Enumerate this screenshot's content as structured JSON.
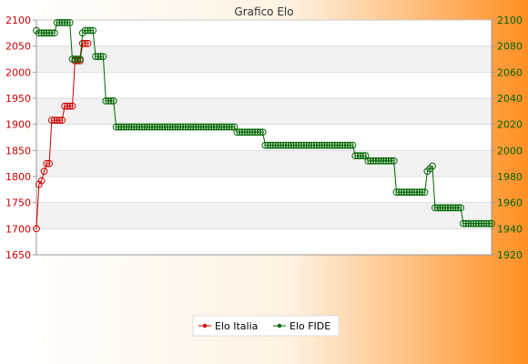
{
  "chart_data": {
    "type": "line",
    "title": "Grafico Elo",
    "y_left": {
      "min": 1650,
      "max": 2100,
      "step": 50,
      "color": "#cc0000"
    },
    "y_right": {
      "min": 1920,
      "max": 2100,
      "step": 20,
      "color": "#006600"
    },
    "grid": "horizontal",
    "legend_position": "bottom-center",
    "series": [
      {
        "name": "Elo Italia",
        "axis": "left",
        "color": "#cc0000",
        "values": [
          1700,
          1785,
          1792,
          1810,
          1825,
          1825,
          1908,
          1908,
          1908,
          1908,
          1908,
          1935,
          1935,
          1935,
          1935,
          2022,
          2022,
          2022,
          2055,
          2055,
          2055
        ]
      },
      {
        "name": "Elo FIDE",
        "axis": "right",
        "color": "#006600",
        "values": [
          2092,
          2090,
          2090,
          2090,
          2090,
          2090,
          2090,
          2090,
          2098,
          2098,
          2098,
          2098,
          2098,
          2098,
          2070,
          2070,
          2070,
          2070,
          2090,
          2092,
          2092,
          2092,
          2092,
          2072,
          2072,
          2072,
          2072,
          2038,
          2038,
          2038,
          2038,
          2018,
          2018,
          2018,
          2018,
          2018,
          2018,
          2018,
          2018,
          2018,
          2018,
          2018,
          2018,
          2018,
          2018,
          2018,
          2018,
          2018,
          2018,
          2018,
          2018,
          2018,
          2018,
          2018,
          2018,
          2018,
          2018,
          2018,
          2018,
          2018,
          2018,
          2018,
          2018,
          2018,
          2018,
          2018,
          2018,
          2018,
          2018,
          2018,
          2018,
          2018,
          2018,
          2018,
          2018,
          2018,
          2018,
          2018,
          2014,
          2014,
          2014,
          2014,
          2014,
          2014,
          2014,
          2014,
          2014,
          2014,
          2014,
          2004,
          2004,
          2004,
          2004,
          2004,
          2004,
          2004,
          2004,
          2004,
          2004,
          2004,
          2004,
          2004,
          2004,
          2004,
          2004,
          2004,
          2004,
          2004,
          2004,
          2004,
          2004,
          2004,
          2004,
          2004,
          2004,
          2004,
          2004,
          2004,
          2004,
          2004,
          2004,
          2004,
          2004,
          2004,
          1996,
          1996,
          1996,
          1996,
          1996,
          1992,
          1992,
          1992,
          1992,
          1992,
          1992,
          1992,
          1992,
          1992,
          1992,
          1992,
          1968,
          1968,
          1968,
          1968,
          1968,
          1968,
          1968,
          1968,
          1968,
          1968,
          1968,
          1968,
          1984,
          1986,
          1988,
          1956,
          1956,
          1956,
          1956,
          1956,
          1956,
          1956,
          1956,
          1956,
          1956,
          1956,
          1944,
          1944,
          1944,
          1944,
          1944,
          1944,
          1944,
          1944,
          1944,
          1944,
          1944,
          1944
        ]
      }
    ]
  }
}
